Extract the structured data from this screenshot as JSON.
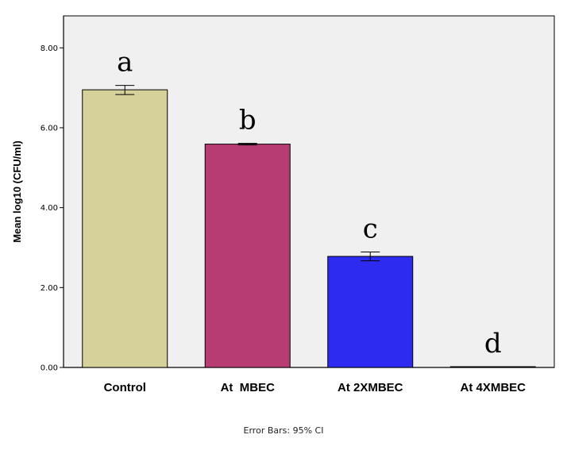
{
  "chart_data": {
    "type": "bar",
    "categories": [
      "Control",
      "At  MBEC",
      "At 2XMBEC",
      "At 4XMBEC"
    ],
    "values": [
      6.95,
      5.59,
      2.78,
      0.01
    ],
    "ci_low": [
      6.83,
      5.57,
      2.67,
      0.0
    ],
    "ci_high": [
      7.06,
      5.61,
      2.89,
      0.02
    ],
    "letters": [
      "a",
      "b",
      "c",
      "d"
    ],
    "colors": [
      "#d6d09a",
      "#b83c74",
      "#2d2bf0",
      "#d6d09a"
    ],
    "ylabel": "Mean log10 (CFU/ml)",
    "ylim": [
      0,
      8.8
    ],
    "yticks": [
      0,
      2,
      4,
      6,
      8
    ],
    "ytick_labels": [
      "0.00",
      "2.00",
      "4.00",
      "6.00",
      "8.00"
    ],
    "error_bars_note": "Error Bars: 95% CI",
    "background": "#f0f0f0",
    "grid": false
  }
}
